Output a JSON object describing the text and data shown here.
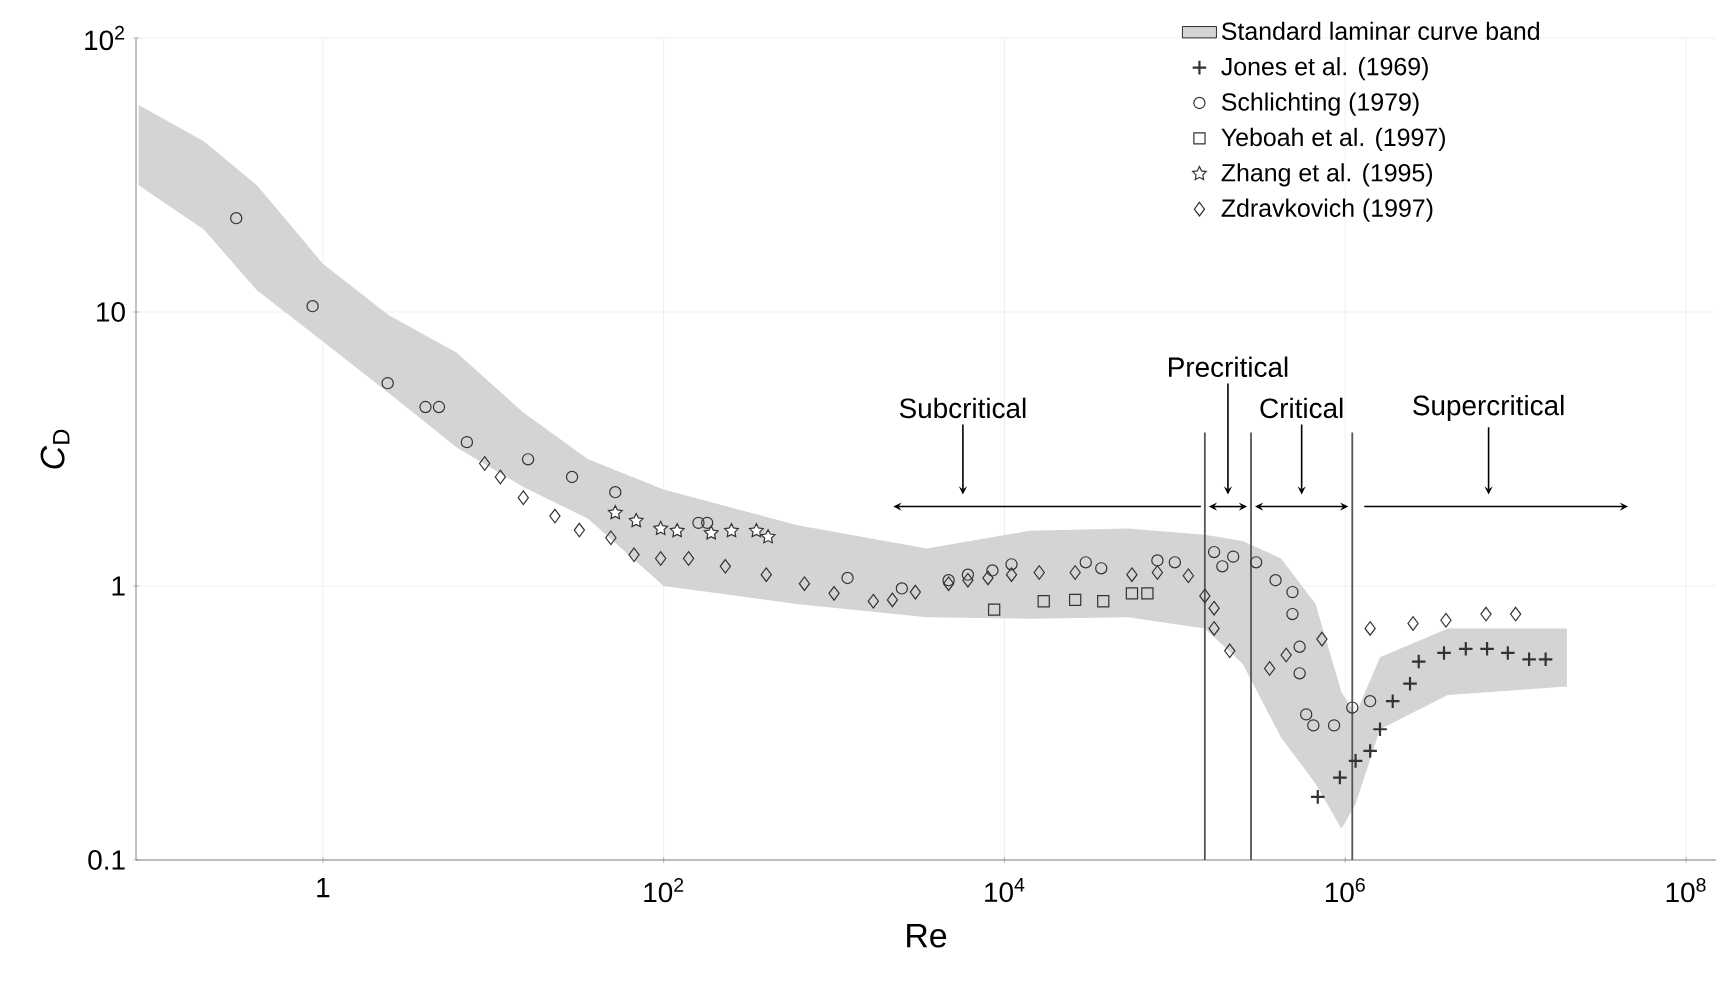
{
  "chart_data": {
    "type": "scatter",
    "xlabel": "Re",
    "ylabel": "*C*$_{D}$",
    "log": "xy",
    "grid": true,
    "legend": "top right",
    "xlim": [
      0.08,
      150000000
    ],
    "ylim": [
      0.1,
      100
    ],
    "xticks": [
      1,
      {
        "value": 100,
        "label": "10$^{2}$"
      },
      {
        "value": 10000,
        "label": "10$^{4}$"
      },
      {
        "value": 1000000,
        "label": "10$^{6}$"
      },
      {
        "value": 100000000,
        "label": "10$^{8}$"
      }
    ],
    "yticks": [
      0.1,
      1,
      10,
      {
        "value": 100,
        "label": "10$^{2}$"
      }
    ],
    "series": [
      {
        "name": "Standard laminar curve band",
        "type": "area",
        "color": "#d4d4d4",
        "x": [
          0.083,
          0.2,
          0.41,
          1,
          2.4,
          6.1,
          15,
          36,
          100,
          600,
          3500,
          14000,
          53000,
          150000,
          250000,
          420000,
          670000,
          950000,
          1150000,
          1600000,
          4000000,
          20000000
        ],
        "values": [
          null,
          null,
          null,
          null,
          null,
          null,
          null,
          null,
          null,
          null,
          null,
          null,
          null,
          null,
          null,
          null,
          null,
          null,
          null,
          null,
          null,
          null
        ],
        "upper": [
          57,
          42,
          29,
          15,
          9.8,
          7.1,
          4.3,
          2.9,
          2.25,
          1.67,
          1.37,
          1.59,
          1.62,
          1.54,
          1.46,
          1.26,
          0.86,
          0.41,
          0.34,
          0.55,
          0.7,
          0.7
        ],
        "lower": [
          29,
          20,
          12,
          7.8,
          5.1,
          3.2,
          2.3,
          1.76,
          1.0,
          0.86,
          0.77,
          0.76,
          0.77,
          0.7,
          0.52,
          0.28,
          0.19,
          0.13,
          0.16,
          0.3,
          0.4,
          0.43
        ]
      },
      {
        "name": "Jones et al. (1969)",
        "marker": "cross",
        "color": "#333333",
        "x": [
          690000,
          930000,
          1150000,
          1400000,
          1600000,
          1900000,
          2400000,
          2700000,
          3800000,
          5100000,
          6800000,
          9000000,
          12000000,
          15000000
        ],
        "values": [
          0.17,
          0.2,
          0.23,
          0.25,
          0.3,
          0.38,
          0.44,
          0.53,
          0.57,
          0.59,
          0.59,
          0.57,
          0.54,
          0.54
        ]
      },
      {
        "name": "Schlichting (1979)",
        "marker": "circle",
        "color": "#333333",
        "x": [
          0.31,
          0.87,
          2.4,
          4.0,
          4.8,
          7.0,
          16,
          29,
          52,
          160,
          180,
          1200,
          2500,
          4700,
          6100,
          8500,
          11000,
          30000,
          37000,
          79000,
          100000,
          170000,
          190000,
          220000,
          300000,
          390000,
          490000,
          490000,
          540000,
          540000,
          590000,
          650000,
          860000,
          1100000,
          1400000
        ],
        "values": [
          22,
          10.5,
          5.5,
          4.5,
          4.5,
          3.35,
          2.9,
          2.5,
          2.2,
          1.7,
          1.7,
          1.07,
          0.98,
          1.05,
          1.1,
          1.14,
          1.2,
          1.22,
          1.16,
          1.24,
          1.22,
          1.33,
          1.18,
          1.28,
          1.22,
          1.05,
          0.95,
          0.79,
          0.6,
          0.48,
          0.34,
          0.31,
          0.31,
          0.36,
          0.38
        ]
      },
      {
        "name": "Yeboah et al. (1997)",
        "marker": "square",
        "color": "#333333",
        "x": [
          8700,
          17000,
          26000,
          38000,
          56000,
          69000
        ],
        "values": [
          0.82,
          0.88,
          0.89,
          0.88,
          0.94,
          0.94
        ]
      },
      {
        "name": "Zhang et al. (1995)",
        "marker": "star",
        "color": "#333333",
        "x": [
          52,
          69,
          96,
          120,
          190,
          250,
          350,
          410
        ],
        "values": [
          1.85,
          1.73,
          1.62,
          1.59,
          1.56,
          1.59,
          1.59,
          1.51
        ]
      },
      {
        "name": "Zdravkovich (1997)",
        "marker": "diamond",
        "color": "#333333",
        "x": [
          8.9,
          11,
          15,
          23,
          32,
          49,
          67,
          96,
          140,
          230,
          400,
          670,
          1000,
          1700,
          2200,
          3000,
          4700,
          6100,
          8000,
          11000,
          16000,
          26000,
          56000,
          79000,
          120000,
          150000,
          170000,
          170000,
          210000,
          360000,
          450000,
          730000,
          1400000,
          2500000,
          3900000,
          6700000,
          10000000
        ],
        "values": [
          2.8,
          2.5,
          2.1,
          1.8,
          1.6,
          1.5,
          1.3,
          1.26,
          1.26,
          1.18,
          1.1,
          1.02,
          0.94,
          0.88,
          0.89,
          0.95,
          1.02,
          1.05,
          1.07,
          1.1,
          1.12,
          1.12,
          1.1,
          1.12,
          1.09,
          0.92,
          0.83,
          0.7,
          0.58,
          0.5,
          0.56,
          0.64,
          0.7,
          0.73,
          0.75,
          0.79,
          0.79
        ]
      }
    ],
    "ref_lines": [
      {
        "axis": "x",
        "value": 150000,
        "color": "#555555"
      },
      {
        "axis": "x",
        "value": 280000,
        "color": "#555555"
      },
      {
        "axis": "x",
        "value": 1100000,
        "color": "#555555"
      }
    ],
    "annotations": [
      "Subcritical",
      "Precritical",
      "Critical",
      "Supercritical"
    ]
  }
}
